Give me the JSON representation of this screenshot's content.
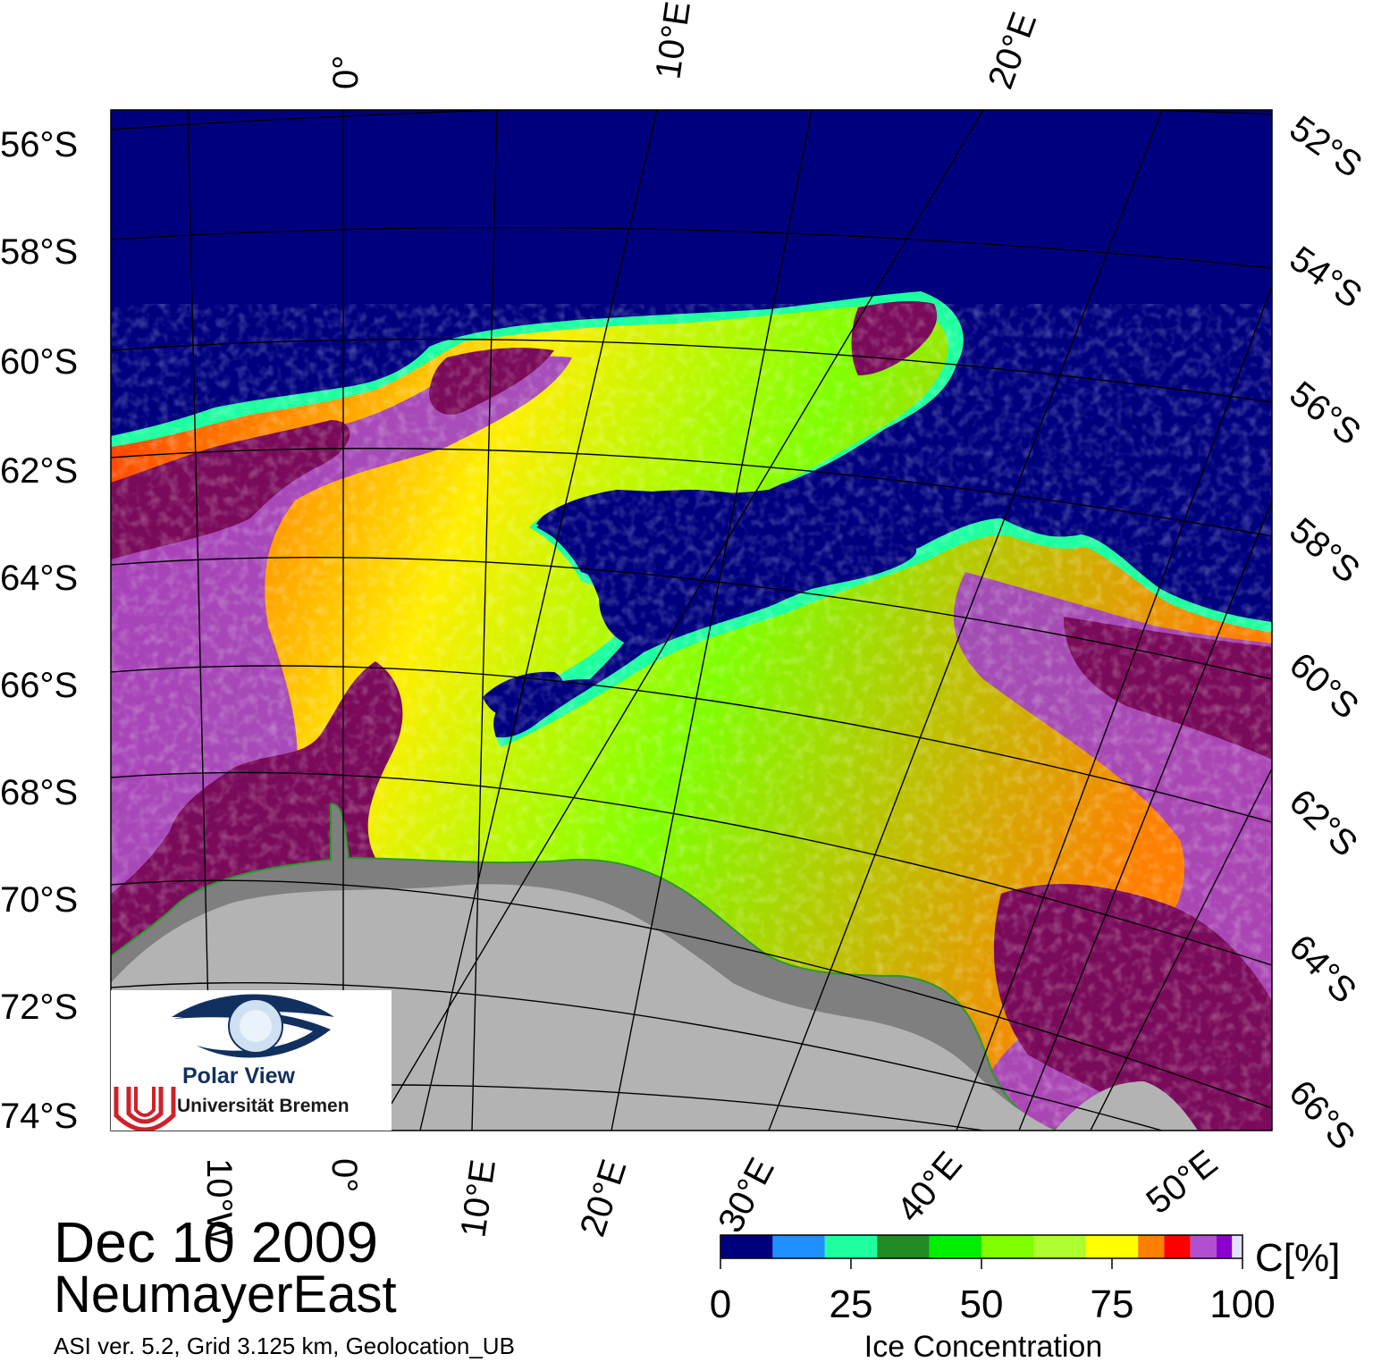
{
  "map": {
    "date": "Dec 10 2009",
    "region": "NeumayerEast",
    "meta": "ASI ver. 5.2,  Grid 3.125 km, Geolocation_UB",
    "lat_labels_left": [
      "56°S",
      "58°S",
      "60°S",
      "62°S",
      "64°S",
      "66°S",
      "68°S",
      "70°S",
      "72°S",
      "74°S"
    ],
    "lat_labels_right": [
      "52°S",
      "54°S",
      "56°S",
      "58°S",
      "60°S",
      "62°S",
      "64°S",
      "66°S"
    ],
    "lon_labels_top": [
      "0°",
      "10°E",
      "20°E"
    ],
    "lon_labels_bottom": [
      "10°W",
      "0°",
      "10°E",
      "20°E",
      "30°E",
      "40°E",
      "50°E"
    ],
    "colors": {
      "open_water": "#00007f",
      "land": "#b3b3b3",
      "ice_shelf": "#7f7f7f",
      "full_ice": "#7a0a5a",
      "coast_line": "#2a9a2a"
    }
  },
  "logo": {
    "title": "Polar View",
    "institution": "Universität Bremen"
  },
  "colorbar": {
    "label": "Ice Concentration",
    "unit": "C[%]",
    "ticks": [
      "0",
      "25",
      "50",
      "75",
      "100"
    ],
    "colors": [
      "#00007f",
      "#1e90ff",
      "#1effa0",
      "#228b22",
      "#00ee00",
      "#7fff00",
      "#adff2f",
      "#ffff00",
      "#ff7f00",
      "#ff0000",
      "#b04fd0",
      "#8a00d0",
      "#e0e0ff"
    ],
    "bounds": [
      0,
      10,
      20,
      30,
      40,
      50,
      60,
      70,
      80,
      85,
      90,
      95,
      98,
      100
    ]
  }
}
